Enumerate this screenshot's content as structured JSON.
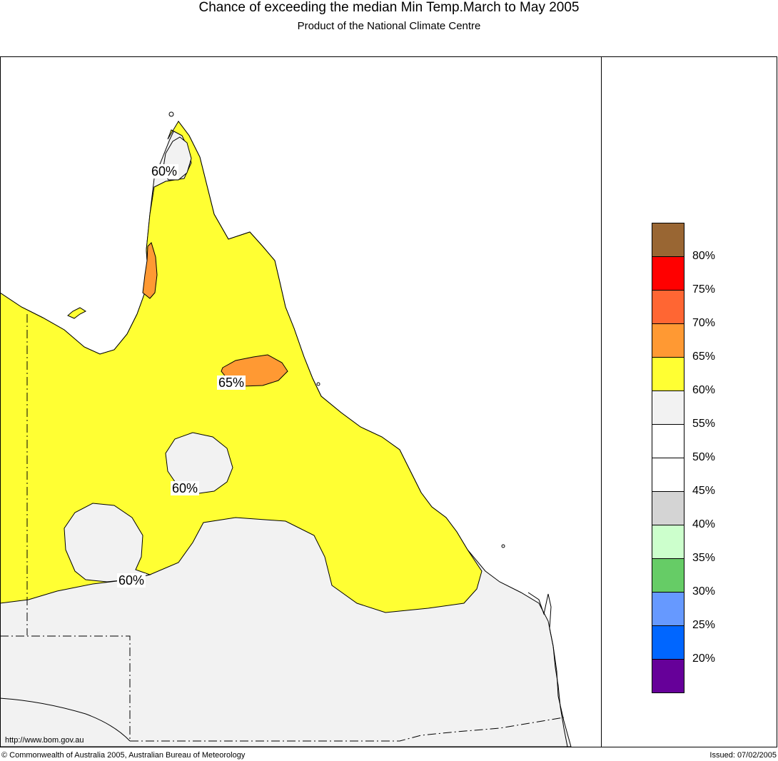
{
  "header": {
    "title": "Chance of exceeding the median Min Temp.March to May 2005",
    "subtitle": "Product of the National Climate Centre"
  },
  "map": {
    "region": "Queensland, Australia",
    "colors": {
      "yellow_60_65": "#ffff33",
      "light_grey_55_60": "#f2f2f2",
      "orange_65_70": "#ff9933",
      "border_dashdot": "#000000"
    },
    "labels": [
      {
        "id": "north-60",
        "text": "60%"
      },
      {
        "id": "center-65",
        "text": "65%"
      },
      {
        "id": "mid-60",
        "text": "60%"
      },
      {
        "id": "south-60",
        "text": "60%"
      }
    ],
    "url": "http://www.bom.gov.au"
  },
  "legend": {
    "swatches": [
      {
        "color": "#996633"
      },
      {
        "color": "#ff0000"
      },
      {
        "color": "#ff6633"
      },
      {
        "color": "#ff9933"
      },
      {
        "color": "#ffff33"
      },
      {
        "color": "#f2f2f2"
      },
      {
        "color": "#ffffff"
      },
      {
        "color": "#ffffff"
      },
      {
        "color": "#d4d4d4"
      },
      {
        "color": "#ccffcc"
      },
      {
        "color": "#66cc66"
      },
      {
        "color": "#6699ff"
      },
      {
        "color": "#0066ff"
      },
      {
        "color": "#660099"
      }
    ],
    "ticks": [
      "80%",
      "75%",
      "70%",
      "65%",
      "60%",
      "55%",
      "50%",
      "45%",
      "40%",
      "35%",
      "30%",
      "25%",
      "20%"
    ]
  },
  "footer": {
    "copyright": "© Commonwealth of Australia 2005, Australian Bureau of Meteorology",
    "issued": "Issued: 07/02/2005"
  }
}
